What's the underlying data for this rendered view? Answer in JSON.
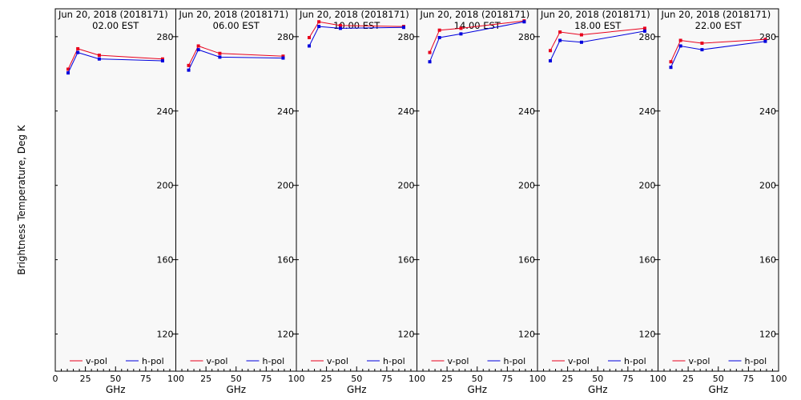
{
  "figure": {
    "ylabel": "Brightness Temperature, Deg K"
  },
  "chart_data": {
    "type": "line",
    "ylim": [
      100,
      295
    ],
    "xlim": [
      0,
      100
    ],
    "yticks": [
      120,
      160,
      200,
      240,
      280
    ],
    "ytick_labels": [
      "120",
      "160",
      "200",
      "240",
      "280"
    ],
    "xlabel": "GHz",
    "legend": {
      "placement": "bottom",
      "entries": [
        "v-pol",
        "h-pol"
      ]
    },
    "colors": {
      "v-pol": "#e8001c",
      "h-pol": "#0000dd"
    },
    "panels": [
      {
        "title": "Jun 20, 2018 (2018171)",
        "subtitle": "02.00 EST",
        "xticks": [
          0,
          25,
          50,
          75,
          100
        ],
        "xtick_labels": [
          "0",
          "25",
          "50",
          "75",
          "100"
        ],
        "series": [
          {
            "name": "v-pol",
            "x": [
              10.65,
              18.7,
              36.5,
              89.0
            ],
            "y": [
              262.5,
              273.5,
              270.0,
              268.0
            ]
          },
          {
            "name": "h-pol",
            "x": [
              10.65,
              18.7,
              36.5,
              89.0
            ],
            "y": [
              260.5,
              271.5,
              268.0,
              267.0
            ]
          }
        ]
      },
      {
        "title": "Jun 20, 2018 (2018171)",
        "subtitle": "06.00 EST",
        "xticks": [
          25,
          50,
          75,
          100
        ],
        "xtick_labels": [
          "25",
          "50",
          "75",
          "100"
        ],
        "series": [
          {
            "name": "v-pol",
            "x": [
              10.65,
              18.7,
              36.5,
              89.0
            ],
            "y": [
              264.5,
              275.0,
              271.0,
              269.5
            ]
          },
          {
            "name": "h-pol",
            "x": [
              10.65,
              18.7,
              36.5,
              89.0
            ],
            "y": [
              262.0,
              273.0,
              269.0,
              268.5
            ]
          }
        ]
      },
      {
        "title": "Jun 20, 2018 (2018171)",
        "subtitle": "10.00 EST",
        "xticks": [
          25,
          50,
          75,
          100
        ],
        "xtick_labels": [
          "25",
          "50",
          "75",
          "100"
        ],
        "series": [
          {
            "name": "v-pol",
            "x": [
              10.65,
              18.7,
              36.5,
              89.0
            ],
            "y": [
              279.5,
              288.0,
              286.0,
              285.5
            ]
          },
          {
            "name": "h-pol",
            "x": [
              10.65,
              18.7,
              36.5,
              89.0
            ],
            "y": [
              275.0,
              285.5,
              284.5,
              285.0
            ]
          }
        ]
      },
      {
        "title": "Jun 20, 2018 (2018171)",
        "subtitle": "14.00 EST",
        "xticks": [
          25,
          50,
          75,
          100
        ],
        "xtick_labels": [
          "25",
          "50",
          "75",
          "100"
        ],
        "series": [
          {
            "name": "v-pol",
            "x": [
              10.65,
              18.7,
              36.5,
              89.0
            ],
            "y": [
              271.5,
              283.5,
              284.5,
              288.5
            ]
          },
          {
            "name": "h-pol",
            "x": [
              10.65,
              18.7,
              36.5,
              89.0
            ],
            "y": [
              266.5,
              279.5,
              281.5,
              288.0
            ]
          }
        ]
      },
      {
        "title": "Jun 20, 2018 (2018171)",
        "subtitle": "18.00 EST",
        "xticks": [
          25,
          50,
          75,
          100
        ],
        "xtick_labels": [
          "25",
          "50",
          "75",
          "100"
        ],
        "series": [
          {
            "name": "v-pol",
            "x": [
              10.65,
              18.7,
              36.5,
              89.0
            ],
            "y": [
              272.5,
              282.5,
              281.0,
              284.5
            ]
          },
          {
            "name": "h-pol",
            "x": [
              10.65,
              18.7,
              36.5,
              89.0
            ],
            "y": [
              267.0,
              278.0,
              277.0,
              283.0
            ]
          }
        ]
      },
      {
        "title": "Jun 20, 2018 (2018171)",
        "subtitle": "22.00 EST",
        "xticks": [
          25,
          50,
          75,
          100
        ],
        "xtick_labels": [
          "25",
          "50",
          "75",
          "100"
        ],
        "series": [
          {
            "name": "v-pol",
            "x": [
              10.65,
              18.7,
              36.5,
              89.0
            ],
            "y": [
              266.5,
              278.0,
              276.5,
              278.5
            ]
          },
          {
            "name": "h-pol",
            "x": [
              10.65,
              18.7,
              36.5,
              89.0
            ],
            "y": [
              263.5,
              275.0,
              273.0,
              277.5
            ]
          }
        ]
      }
    ]
  }
}
